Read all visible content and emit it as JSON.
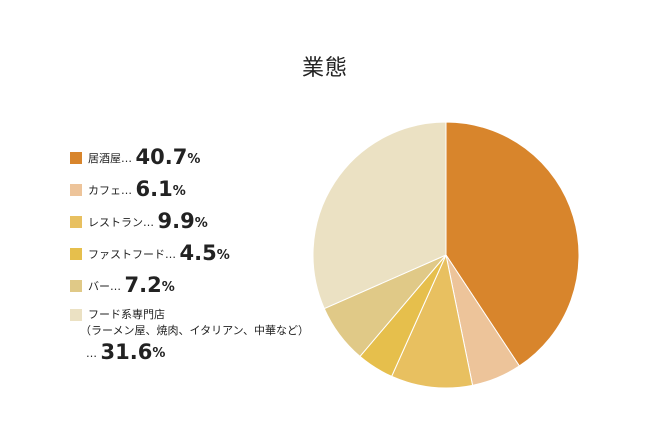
{
  "chart_data": {
    "type": "pie",
    "title": "業態",
    "unit": "%",
    "slices": [
      {
        "label": "居酒屋",
        "value": 40.7,
        "color": "#d8852c"
      },
      {
        "label": "カフェ",
        "value": 6.1,
        "color": "#edc49a"
      },
      {
        "label": "レストラン",
        "value": 9.9,
        "color": "#e8c060"
      },
      {
        "label": "ファストフード",
        "value": 4.5,
        "color": "#e6bf4c"
      },
      {
        "label": "バー",
        "value": 7.2,
        "color": "#e0c987"
      },
      {
        "label": "フード系専門店",
        "sublabel": "（ラーメン屋、焼肉、イタリアン、中華など）",
        "value": 31.6,
        "color": "#ebe1c3"
      }
    ],
    "legend": {
      "position": "left",
      "separator": "…"
    }
  }
}
